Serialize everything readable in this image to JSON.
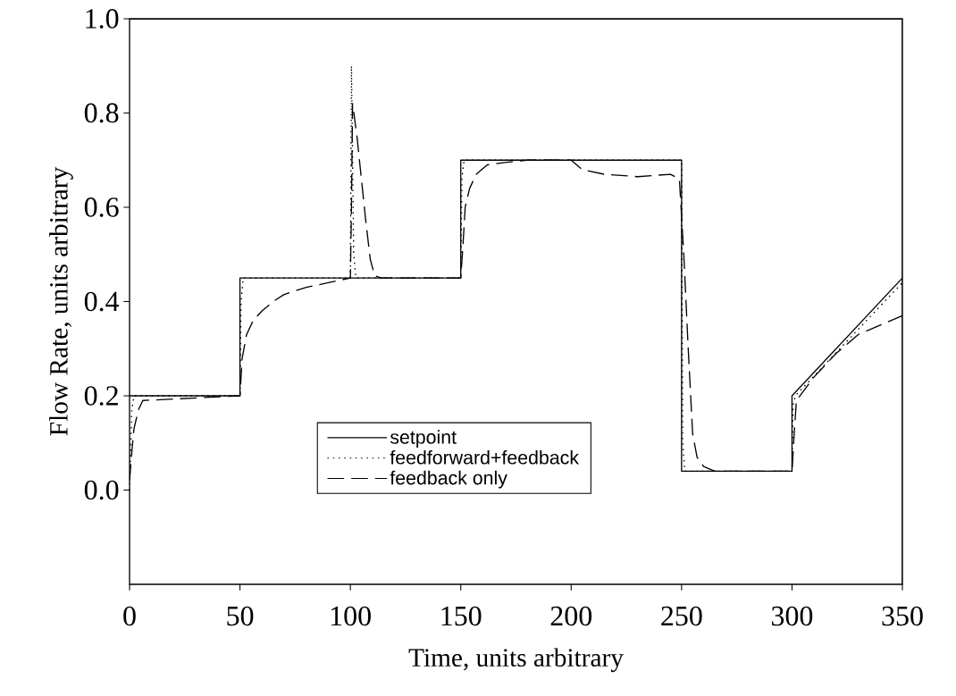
{
  "chart_data": {
    "type": "line",
    "xlabel": "Time, units arbitrary",
    "ylabel": "Flow Rate, units arbitrary",
    "xlim": [
      0,
      350
    ],
    "xticks": [
      0,
      50,
      100,
      150,
      200,
      250,
      300,
      350
    ],
    "ylim": [
      -0.2,
      1.0
    ],
    "yticks": [
      {
        "value": 0,
        "label": "0.0"
      },
      {
        "value": 0.2,
        "label": "0.2"
      },
      {
        "value": 0.4,
        "label": "0.4"
      },
      {
        "value": 0.6,
        "label": "0.6"
      },
      {
        "value": 0.8,
        "label": "0.8"
      },
      {
        "value": 1.0,
        "label": "1.0"
      }
    ],
    "grid": false,
    "legend": "bottom",
    "series": [
      {
        "name": "setpoint",
        "color": "#000000",
        "line_style": "solid",
        "x": [
          0,
          50,
          50,
          100,
          100,
          150,
          150,
          250,
          250,
          300,
          300,
          350
        ],
        "values": [
          0.2,
          0.2,
          0.45,
          0.45,
          0.45,
          0.45,
          0.7,
          0.7,
          0.04,
          0.04,
          0.2,
          0.45
        ]
      },
      {
        "name": "feedforward+feedback",
        "color": "#000000",
        "line_style": "dotted",
        "x": [
          0,
          1,
          2,
          50,
          50.5,
          51.5,
          100,
          100.5,
          101.5,
          102.5,
          150,
          150.5,
          151.5,
          250,
          250.5,
          251.5,
          300,
          300.5,
          301.5,
          350
        ],
        "values": [
          0.0,
          0.17,
          0.2,
          0.2,
          0.4,
          0.45,
          0.45,
          0.9,
          0.5,
          0.45,
          0.45,
          0.66,
          0.7,
          0.7,
          0.1,
          0.04,
          0.04,
          0.18,
          0.2,
          0.44
        ]
      },
      {
        "name": "feedback only",
        "color": "#000000",
        "line_style": "dashed",
        "x": [
          0,
          1,
          2,
          4,
          6,
          50,
          51,
          53,
          56,
          60,
          65,
          70,
          80,
          90,
          100,
          100.5,
          101,
          103,
          105,
          107,
          109,
          111,
          114,
          150,
          151,
          152,
          154,
          157,
          162,
          170,
          180,
          200,
          205,
          215,
          230,
          245,
          249,
          251,
          253,
          255,
          257,
          260,
          265,
          300,
          301,
          302,
          310,
          320,
          330,
          340,
          350
        ],
        "values": [
          0.02,
          0.08,
          0.13,
          0.17,
          0.19,
          0.2,
          0.28,
          0.33,
          0.36,
          0.38,
          0.4,
          0.415,
          0.43,
          0.44,
          0.45,
          0.6,
          0.82,
          0.75,
          0.66,
          0.57,
          0.49,
          0.455,
          0.45,
          0.45,
          0.52,
          0.6,
          0.64,
          0.67,
          0.69,
          0.695,
          0.7,
          0.7,
          0.68,
          0.67,
          0.665,
          0.67,
          0.66,
          0.5,
          0.3,
          0.12,
          0.07,
          0.05,
          0.04,
          0.04,
          0.12,
          0.19,
          0.24,
          0.29,
          0.33,
          0.35,
          0.37
        ]
      }
    ]
  }
}
